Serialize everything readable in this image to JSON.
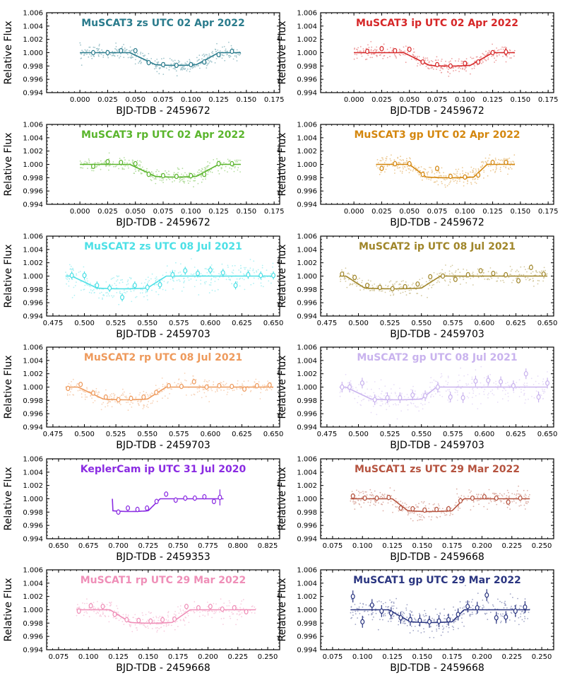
{
  "figure": {
    "ylabel": "Relative Flux",
    "yticks": [
      "1.006",
      "1.004",
      "1.002",
      "1.000",
      "0.998",
      "0.996",
      "0.994"
    ]
  },
  "chart_data": [
    {
      "type": "scatter",
      "title": "MuSCAT3 zs UTC 02 Apr 2022",
      "color": "#2a7b8c",
      "xlabel": "BJD-TDB - 2459672",
      "xlim": [
        -0.03,
        0.18
      ],
      "ylim": [
        0.994,
        1.006
      ],
      "xticks": [
        "0.000",
        "0.025",
        "0.050",
        "0.075",
        "0.100",
        "0.125",
        "0.150",
        "0.175"
      ],
      "model": {
        "t1": 0.045,
        "t2": 0.068,
        "t3": 0.105,
        "t4": 0.125,
        "depth": 0.0018
      },
      "binned": {
        "x": [
          0.012,
          0.025,
          0.037,
          0.05,
          0.062,
          0.075,
          0.087,
          0.1,
          0.112,
          0.125,
          0.137
        ],
        "y": [
          1.0,
          1.0,
          1.0003,
          1.0003,
          0.9985,
          0.9982,
          0.9981,
          0.9982,
          0.9986,
          0.9997,
          1.0002
        ],
        "err": [
          0.0003,
          0.0003,
          0.0003,
          0.0003,
          0.0003,
          0.0003,
          0.0003,
          0.0003,
          0.0003,
          0.0003,
          0.0003
        ]
      },
      "raw_range": [
        0.0,
        0.145
      ],
      "raw_scatter": 0.0009
    },
    {
      "type": "scatter",
      "title": "MuSCAT3 ip UTC 02 Apr 2022",
      "color": "#d62728",
      "xlabel": "BJD-TDB - 2459672",
      "xlim": [
        -0.03,
        0.18
      ],
      "ylim": [
        0.994,
        1.006
      ],
      "xticks": [
        "0.000",
        "0.025",
        "0.050",
        "0.075",
        "0.100",
        "0.125",
        "0.150",
        "0.175"
      ],
      "model": {
        "t1": 0.045,
        "t2": 0.068,
        "t3": 0.105,
        "t4": 0.125,
        "depth": 0.0019
      },
      "binned": {
        "x": [
          0.012,
          0.025,
          0.037,
          0.05,
          0.062,
          0.075,
          0.087,
          0.1,
          0.112,
          0.125,
          0.137
        ],
        "y": [
          1.0002,
          1.0006,
          1.0003,
          1.0005,
          0.9986,
          0.9982,
          0.998,
          0.9984,
          0.9986,
          1.0,
          1.0001
        ],
        "err": [
          0.0003,
          0.0003,
          0.0003,
          0.0003,
          0.0003,
          0.0003,
          0.0003,
          0.0003,
          0.0003,
          0.0003,
          0.0006
        ]
      },
      "raw_range": [
        0.0,
        0.145
      ],
      "raw_scatter": 0.0009
    },
    {
      "type": "scatter",
      "title": "MuSCAT3 rp UTC 02 Apr 2022",
      "color": "#5ab52c",
      "xlabel": "BJD-TDB - 2459672",
      "xlim": [
        -0.03,
        0.18
      ],
      "ylim": [
        0.994,
        1.006
      ],
      "xticks": [
        "0.000",
        "0.025",
        "0.050",
        "0.075",
        "0.100",
        "0.125",
        "0.150",
        "0.175"
      ],
      "model": {
        "t1": 0.045,
        "t2": 0.068,
        "t3": 0.105,
        "t4": 0.125,
        "depth": 0.0018
      },
      "binned": {
        "x": [
          0.012,
          0.025,
          0.037,
          0.05,
          0.062,
          0.075,
          0.087,
          0.1,
          0.112,
          0.125,
          0.137
        ],
        "y": [
          0.9997,
          1.0004,
          1.0003,
          1.0001,
          0.9985,
          0.9983,
          0.9982,
          0.9983,
          0.9985,
          1.0001,
          1.0001
        ],
        "err": [
          0.0003,
          0.0003,
          0.0003,
          0.0003,
          0.0003,
          0.0003,
          0.0003,
          0.0003,
          0.0003,
          0.0003,
          0.0003
        ]
      },
      "raw_range": [
        0.0,
        0.145
      ],
      "raw_scatter": 0.0009
    },
    {
      "type": "scatter",
      "title": "MuSCAT3 gp UTC 02 Apr 2022",
      "color": "#d4870f",
      "xlabel": "BJD-TDB - 2459672",
      "xlim": [
        -0.03,
        0.18
      ],
      "ylim": [
        0.994,
        1.006
      ],
      "xticks": [
        "0.000",
        "0.025",
        "0.050",
        "0.075",
        "0.100",
        "0.125",
        "0.150",
        "0.175"
      ],
      "model": {
        "t1": 0.05,
        "t2": 0.065,
        "t3": 0.108,
        "t4": 0.12,
        "depth": 0.0019
      },
      "binned": {
        "x": [
          0.025,
          0.037,
          0.05,
          0.062,
          0.075,
          0.087,
          0.1,
          0.112,
          0.125,
          0.137
        ],
        "y": [
          0.9994,
          1.0001,
          1.0001,
          0.9985,
          0.9994,
          0.9982,
          0.9981,
          0.9984,
          1.0003,
          1.0003
        ],
        "err": [
          0.0004,
          0.0004,
          0.0004,
          0.0004,
          0.0004,
          0.0004,
          0.0004,
          0.0004,
          0.0004,
          0.0004
        ]
      },
      "raw_range": [
        0.02,
        0.145
      ],
      "raw_scatter": 0.0011
    },
    {
      "type": "scatter",
      "title": "MuSCAT2 zs UTC 08 Jul 2021",
      "color": "#4de0e6",
      "xlabel": "BJD-TDB - 2459703",
      "xlim": [
        0.47,
        0.655
      ],
      "ylim": [
        0.994,
        1.006
      ],
      "xticks": [
        "0.475",
        "0.500",
        "0.525",
        "0.550",
        "0.575",
        "0.600",
        "0.625",
        "0.650"
      ],
      "model": {
        "t1": 0.49,
        "t2": 0.51,
        "t3": 0.55,
        "t4": 0.565,
        "depth": 0.0018
      },
      "binned": {
        "x": [
          0.49,
          0.5,
          0.51,
          0.52,
          0.53,
          0.54,
          0.55,
          0.56,
          0.57,
          0.58,
          0.59,
          0.6,
          0.61,
          0.62,
          0.63,
          0.64,
          0.65
        ],
        "y": [
          1.0001,
          1.0001,
          0.9986,
          0.9982,
          0.9968,
          0.9986,
          0.9983,
          0.9987,
          1.0002,
          1.0008,
          1.0004,
          1.0009,
          1.0005,
          0.9986,
          1.0002,
          1.0001,
          1.0001
        ],
        "err": [
          0.0006,
          0.0006,
          0.0006,
          0.0006,
          0.0006,
          0.0006,
          0.0006,
          0.0006,
          0.0006,
          0.0006,
          0.0006,
          0.0006,
          0.0006,
          0.0006,
          0.0006,
          0.0006,
          0.0006
        ]
      },
      "raw_range": [
        0.485,
        0.65
      ],
      "raw_scatter": 0.0016
    },
    {
      "type": "scatter",
      "title": "MuSCAT2 ip UTC 08 Jul 2021",
      "color": "#a0862a",
      "xlabel": "BJD-TDB - 2459703",
      "xlim": [
        0.47,
        0.655
      ],
      "ylim": [
        0.994,
        1.006
      ],
      "xticks": [
        "0.475",
        "0.500",
        "0.525",
        "0.550",
        "0.575",
        "0.600",
        "0.625",
        "0.650"
      ],
      "model": {
        "t1": 0.49,
        "t2": 0.505,
        "t3": 0.55,
        "t4": 0.565,
        "depth": 0.0018
      },
      "binned": {
        "x": [
          0.487,
          0.497,
          0.507,
          0.517,
          0.527,
          0.537,
          0.547,
          0.557,
          0.567,
          0.577,
          0.587,
          0.597,
          0.607,
          0.617,
          0.627,
          0.637,
          0.647
        ],
        "y": [
          1.0003,
          0.9998,
          0.9986,
          0.9983,
          0.9981,
          0.9984,
          0.9988,
          0.9999,
          1.0,
          0.9995,
          1.0002,
          1.0008,
          1.0004,
          1.0002,
          0.9993,
          1.0013,
          1.0003
        ],
        "err": [
          0.0003,
          0.0003,
          0.0003,
          0.0003,
          0.0003,
          0.0003,
          0.0003,
          0.0003,
          0.0003,
          0.0003,
          0.0003,
          0.0003,
          0.0003,
          0.0003,
          0.0003,
          0.0003,
          0.0003
        ]
      },
      "raw_range": [
        0.485,
        0.65
      ],
      "raw_scatter": 0.0011
    },
    {
      "type": "scatter",
      "title": "MuSCAT2 rp UTC 08 Jul 2021",
      "color": "#ee9a5c",
      "xlabel": "BJD-TDB - 2459703",
      "xlim": [
        0.47,
        0.655
      ],
      "ylim": [
        0.994,
        1.006
      ],
      "xticks": [
        "0.475",
        "0.500",
        "0.525",
        "0.550",
        "0.575",
        "0.600",
        "0.625",
        "0.650"
      ],
      "model": {
        "t1": 0.495,
        "t2": 0.515,
        "t3": 0.55,
        "t4": 0.565,
        "depth": 0.0018
      },
      "binned": {
        "x": [
          0.487,
          0.497,
          0.507,
          0.517,
          0.527,
          0.537,
          0.547,
          0.557,
          0.567,
          0.577,
          0.587,
          0.597,
          0.607,
          0.617,
          0.627,
          0.637,
          0.647
        ],
        "y": [
          0.9998,
          1.0004,
          0.9991,
          0.9985,
          0.9981,
          0.9983,
          0.9985,
          0.9992,
          1.0002,
          1.0001,
          1.0008,
          1.0,
          1.0002,
          1.0001,
          0.9997,
          1.0002,
          1.0003
        ],
        "err": [
          0.0003,
          0.0003,
          0.0003,
          0.0003,
          0.0003,
          0.0003,
          0.0003,
          0.0003,
          0.0003,
          0.0003,
          0.0003,
          0.0003,
          0.0003,
          0.0003,
          0.0003,
          0.0003,
          0.0003
        ]
      },
      "raw_range": [
        0.485,
        0.65
      ],
      "raw_scatter": 0.0011
    },
    {
      "type": "scatter",
      "title": "MuSCAT2 gp UTC 08 Jul 2021",
      "color": "#c9b3ee",
      "xlabel": "BJD-TDB - 2459703",
      "xlim": [
        0.47,
        0.655
      ],
      "ylim": [
        0.994,
        1.006
      ],
      "xticks": [
        "0.475",
        "0.500",
        "0.525",
        "0.550",
        "0.575",
        "0.600",
        "0.625",
        "0.650"
      ],
      "model": {
        "t1": 0.49,
        "t2": 0.51,
        "t3": 0.55,
        "t4": 0.562,
        "depth": 0.0018
      },
      "binned": {
        "x": [
          0.487,
          0.493,
          0.503,
          0.513,
          0.523,
          0.533,
          0.543,
          0.553,
          0.563,
          0.573,
          0.583,
          0.593,
          0.603,
          0.613,
          0.623,
          0.633,
          0.643,
          0.65
        ],
        "y": [
          1.0,
          1.0,
          1.0006,
          0.9981,
          0.9984,
          0.9984,
          0.9988,
          0.9987,
          1.0,
          0.9985,
          0.9984,
          1.0009,
          1.001,
          1.0008,
          1.0002,
          1.002,
          0.9985,
          1.0006
        ],
        "err": [
          0.0008,
          0.0008,
          0.0008,
          0.0008,
          0.0008,
          0.0008,
          0.0008,
          0.0008,
          0.0008,
          0.0008,
          0.0008,
          0.0008,
          0.0008,
          0.0008,
          0.0008,
          0.0008,
          0.0008,
          0.0008
        ]
      },
      "raw_range": [
        0.485,
        0.65
      ],
      "raw_scatter": 0.0018
    },
    {
      "type": "scatter",
      "title": "KeplerCam ip UTC 31 Jul 2020",
      "color": "#8a2be2",
      "xlabel": "BJD-TDB - 2459353",
      "xlim": [
        0.64,
        0.835
      ],
      "ylim": [
        0.994,
        1.006
      ],
      "xticks": [
        "0.650",
        "0.675",
        "0.700",
        "0.725",
        "0.750",
        "0.775",
        "0.800",
        "0.825"
      ],
      "model": {
        "t1": 0.695,
        "t2": 0.695,
        "t3": 0.725,
        "t4": 0.735,
        "depth": 0.0018,
        "x_start": 0.695,
        "x_end": 0.788
      },
      "binned": {
        "x": [
          0.7,
          0.708,
          0.716,
          0.724,
          0.732,
          0.74,
          0.748,
          0.756,
          0.764,
          0.772,
          0.78,
          0.785
        ],
        "y": [
          0.998,
          0.9986,
          0.9984,
          0.9986,
          0.9996,
          1.0007,
          0.9998,
          1.0001,
          1.0001,
          1.0003,
          0.9996,
          1.0002
        ],
        "err": [
          0.0004,
          0.0004,
          0.0004,
          0.0004,
          0.0004,
          0.0004,
          0.0004,
          0.0004,
          0.0004,
          0.0004,
          0.0004,
          0.0012
        ]
      },
      "raw_range": [
        0.0,
        0.0
      ],
      "raw_scatter": 0.0
    },
    {
      "type": "scatter",
      "title": "MuSCAT1 zs UTC 29 Mar 2022",
      "color": "#b5533f",
      "xlabel": "BJD-TDB - 2459668",
      "xlim": [
        0.065,
        0.26
      ],
      "ylim": [
        0.994,
        1.006
      ],
      "xticks": [
        "0.075",
        "0.100",
        "0.125",
        "0.150",
        "0.175",
        "0.200",
        "0.225",
        "0.250"
      ],
      "model": {
        "t1": 0.125,
        "t2": 0.138,
        "t3": 0.175,
        "t4": 0.185,
        "depth": 0.0018
      },
      "binned": {
        "x": [
          0.092,
          0.102,
          0.112,
          0.122,
          0.132,
          0.142,
          0.152,
          0.162,
          0.172,
          0.182,
          0.192,
          0.202,
          0.212,
          0.222,
          0.232
        ],
        "y": [
          1.0004,
          1.0001,
          1.0001,
          1.0002,
          0.9986,
          0.9985,
          0.9983,
          0.9984,
          0.9985,
          0.9997,
          1.0001,
          1.0003,
          1.0001,
          0.9995,
          1.0001
        ],
        "err": [
          0.0003,
          0.0003,
          0.0003,
          0.0003,
          0.0003,
          0.0003,
          0.0003,
          0.0003,
          0.0003,
          0.0003,
          0.0003,
          0.0003,
          0.0003,
          0.0003,
          0.0003
        ]
      },
      "raw_range": [
        0.09,
        0.24
      ],
      "raw_scatter": 0.0012
    },
    {
      "type": "scatter",
      "title": "MuSCAT1 rp UTC 29 Mar 2022",
      "color": "#ef8fb8",
      "xlabel": "BJD-TDB - 2459668",
      "xlim": [
        0.065,
        0.26
      ],
      "ylim": [
        0.994,
        1.006
      ],
      "xticks": [
        "0.075",
        "0.100",
        "0.125",
        "0.150",
        "0.175",
        "0.200",
        "0.225",
        "0.250"
      ],
      "model": {
        "t1": 0.118,
        "t2": 0.135,
        "t3": 0.17,
        "t4": 0.185,
        "depth": 0.0019
      },
      "binned": {
        "x": [
          0.092,
          0.102,
          0.112,
          0.122,
          0.132,
          0.142,
          0.152,
          0.162,
          0.172,
          0.182,
          0.192,
          0.202,
          0.212,
          0.222,
          0.232
        ],
        "y": [
          0.9998,
          1.0006,
          1.0005,
          0.9993,
          0.9985,
          0.9984,
          0.9983,
          0.9985,
          0.9986,
          1.0005,
          1.0003,
          1.0005,
          1.0001,
          1.0003,
          0.9997
        ],
        "err": [
          0.0004,
          0.0004,
          0.0004,
          0.0004,
          0.0004,
          0.0004,
          0.0004,
          0.0004,
          0.0004,
          0.0004,
          0.0004,
          0.0004,
          0.0004,
          0.0004,
          0.0004
        ]
      },
      "raw_range": [
        0.09,
        0.24
      ],
      "raw_scatter": 0.0012
    },
    {
      "type": "scatter",
      "title": "MuSCAT1 gp UTC 29 Mar 2022",
      "color": "#2a3580",
      "xlabel": "BJD-TDB - 2459668",
      "xlim": [
        0.065,
        0.26
      ],
      "ylim": [
        0.994,
        1.006
      ],
      "xticks": [
        "0.075",
        "0.100",
        "0.125",
        "0.150",
        "0.175",
        "0.200",
        "0.225",
        "0.250"
      ],
      "model": {
        "t1": 0.122,
        "t2": 0.14,
        "t3": 0.175,
        "t4": 0.185,
        "depth": 0.0018
      },
      "binned": {
        "x": [
          0.092,
          0.1,
          0.108,
          0.116,
          0.124,
          0.132,
          0.14,
          0.148,
          0.156,
          0.164,
          0.172,
          0.18,
          0.188,
          0.196,
          0.204,
          0.212,
          0.22,
          0.228,
          0.236
        ],
        "y": [
          1.002,
          0.9982,
          1.0007,
          0.9998,
          0.9995,
          0.9988,
          0.9985,
          0.9984,
          0.9982,
          0.9983,
          0.9985,
          0.9993,
          1.0005,
          1.0003,
          1.0022,
          0.9988,
          0.9989,
          0.9998,
          1.0004
        ],
        "err": [
          0.0009,
          0.0009,
          0.0009,
          0.0009,
          0.0009,
          0.0009,
          0.0009,
          0.0009,
          0.0009,
          0.0009,
          0.0009,
          0.0009,
          0.0009,
          0.0009,
          0.0009,
          0.0009,
          0.0009,
          0.0009,
          0.0009
        ]
      },
      "raw_range": [
        0.09,
        0.24
      ],
      "raw_scatter": 0.0016
    }
  ]
}
